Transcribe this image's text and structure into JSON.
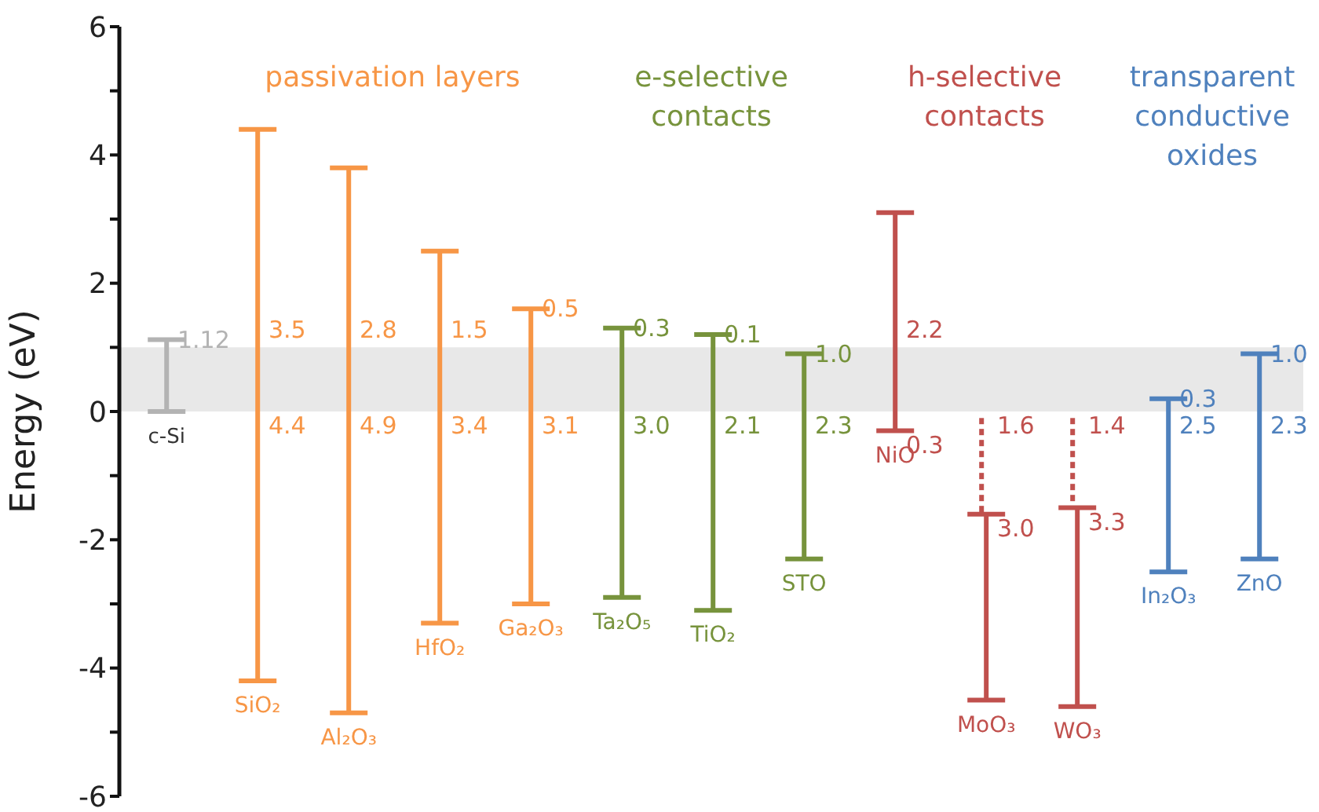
{
  "chart_data": {
    "type": "bar",
    "ylabel": "Energy (eV)",
    "categories": [
      "c-Si",
      "SiO₂",
      "Al₂O₃",
      "HfO₂",
      "Ga₂O₃",
      "Ta₂O₅",
      "TiO₂",
      "STO",
      "NiO",
      "MoO₃",
      "WO₃",
      "In₂O₃",
      "ZnO"
    ],
    "series": [
      {
        "values": [
          1.12,
          8.6,
          8.5,
          5.8,
          4.6,
          4.2,
          4.3,
          3.2,
          3.4,
          2.9,
          3.1,
          2.7,
          3.2
        ],
        "base": [
          0,
          -4.2,
          -4.7,
          -3.3,
          -3.0,
          -2.9,
          -3.1,
          -2.3,
          -0.3,
          -4.5,
          -4.6,
          -2.5,
          -2.3
        ],
        "line_style": "solid",
        "colors": [
          "#b3b3b3",
          "#f79646",
          "#f79646",
          "#f79646",
          "#f79646",
          "#77933c",
          "#77933c",
          "#77933c",
          "#c0504d",
          "#c0504d",
          "#c0504d",
          "#4f81bd",
          "#4f81bd"
        ]
      },
      {
        "values": [
          null,
          null,
          null,
          null,
          null,
          null,
          null,
          null,
          null,
          1.5,
          1.4,
          null,
          null
        ],
        "base": [
          null,
          null,
          null,
          null,
          null,
          null,
          null,
          null,
          null,
          -1.6,
          -1.5,
          null,
          null
        ],
        "line_style": "dashed",
        "color": "#c0504d"
      }
    ],
    "ylim": [
      -6,
      6
    ],
    "yticks": [
      -6,
      {
        "value": -5,
        "label": null
      },
      -4,
      {
        "value": -3,
        "label": null
      },
      -2,
      {
        "value": -1,
        "label": null
      },
      0,
      {
        "value": 1,
        "label": null
      },
      2,
      {
        "value": 3,
        "label": null
      },
      4,
      {
        "value": 5,
        "label": null
      },
      6
    ],
    "bands": [
      {
        "axis": "y",
        "from": 0,
        "to": 1.0,
        "color": "#e8e8e8"
      }
    ],
    "annotations": [
      {
        "text": "1.12",
        "x": "c-Si",
        "y": 1.12
      },
      {
        "text": "3.5",
        "x": "SiO₂",
        "y": 1.0
      },
      {
        "text": "4.4",
        "x": "SiO₂",
        "y": 0
      },
      {
        "text": "2.8",
        "x": "Al₂O₃",
        "y": 1.0
      },
      {
        "text": "4.9",
        "x": "Al₂O₃",
        "y": 0
      },
      {
        "text": "1.5",
        "x": "HfO₂",
        "y": 1.0
      },
      {
        "text": "3.4",
        "x": "HfO₂",
        "y": 0
      },
      {
        "text": "0.5",
        "x": "Ga₂O₃",
        "y": 1.6
      },
      {
        "text": "3.1",
        "x": "Ga₂O₃",
        "y": 0
      },
      {
        "text": "0.3",
        "x": "Ta₂O₅",
        "y": 1.3
      },
      {
        "text": "3.0",
        "x": "Ta₂O₅",
        "y": 0
      },
      {
        "text": "0.1",
        "x": "TiO₂",
        "y": 1.2
      },
      {
        "text": "2.1",
        "x": "TiO₂",
        "y": 0
      },
      {
        "text": "1.0",
        "x": "STO",
        "y": 0.9
      },
      {
        "text": "2.3",
        "x": "STO",
        "y": 0
      },
      {
        "text": "2.2",
        "x": "NiO",
        "y": 1.0
      },
      {
        "text": "0.3",
        "x": "NiO",
        "y": -0.3
      },
      {
        "text": "1.6",
        "x": "MoO₃",
        "y": 0
      },
      {
        "text": "3.0",
        "x": "MoO₃",
        "y": -1.6
      },
      {
        "text": "1.4",
        "x": "WO₃",
        "y": 0
      },
      {
        "text": "3.3",
        "x": "WO₃",
        "y": -1.5
      },
      {
        "text": "0.3",
        "x": "In₂O₃",
        "y": 0.2
      },
      {
        "text": "2.5",
        "x": "In₂O₃",
        "y": 0
      },
      {
        "text": "1.0",
        "x": "ZnO",
        "y": 0.9
      },
      {
        "text": "2.3",
        "x": "ZnO",
        "y": 0
      },
      "passivation layers",
      "e-selective\ncontacts",
      "h-selective\ncontacts",
      "transparent\nconductive\noxides"
    ]
  }
}
